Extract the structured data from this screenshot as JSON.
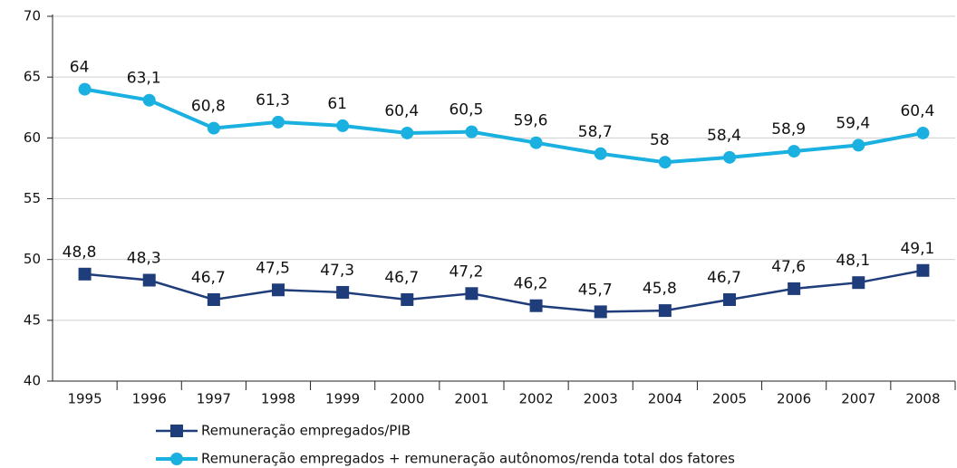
{
  "chart_data": {
    "type": "line",
    "categories": [
      "1995",
      "1996",
      "1997",
      "1998",
      "1999",
      "2000",
      "2001",
      "2002",
      "2003",
      "2004",
      "2005",
      "2006",
      "2007",
      "2008"
    ],
    "series": [
      {
        "name": "Remuneração empregados/PIB",
        "color": "#1f3d7a",
        "marker": "square",
        "values": [
          48.8,
          48.3,
          46.7,
          47.5,
          47.3,
          46.7,
          47.2,
          46.2,
          45.7,
          45.8,
          46.7,
          47.6,
          48.1,
          49.1
        ],
        "value_labels": [
          "48,8",
          "48,3",
          "46,7",
          "47,5",
          "47,3",
          "46,7",
          "47,2",
          "46,2",
          "45,7",
          "45,8",
          "46,7",
          "47,6",
          "48,1",
          "49,1"
        ]
      },
      {
        "name": "Remuneração empregados + remuneração autônomos/renda total dos fatores",
        "color": "#1ab0e0",
        "marker": "circle",
        "values": [
          64,
          63.1,
          60.8,
          61.3,
          61,
          60.4,
          60.5,
          59.6,
          58.7,
          58,
          58.4,
          58.9,
          59.4,
          60.4
        ],
        "value_labels": [
          "64",
          "63,1",
          "60,8",
          "61,3",
          "61",
          "60,4",
          "60,5",
          "59,6",
          "58,7",
          "58",
          "58,4",
          "58,9",
          "59,4",
          "60,4"
        ]
      }
    ],
    "ylim": [
      40,
      70
    ],
    "yticks": [
      40,
      45,
      50,
      55,
      60,
      65,
      70
    ],
    "grid": true
  }
}
